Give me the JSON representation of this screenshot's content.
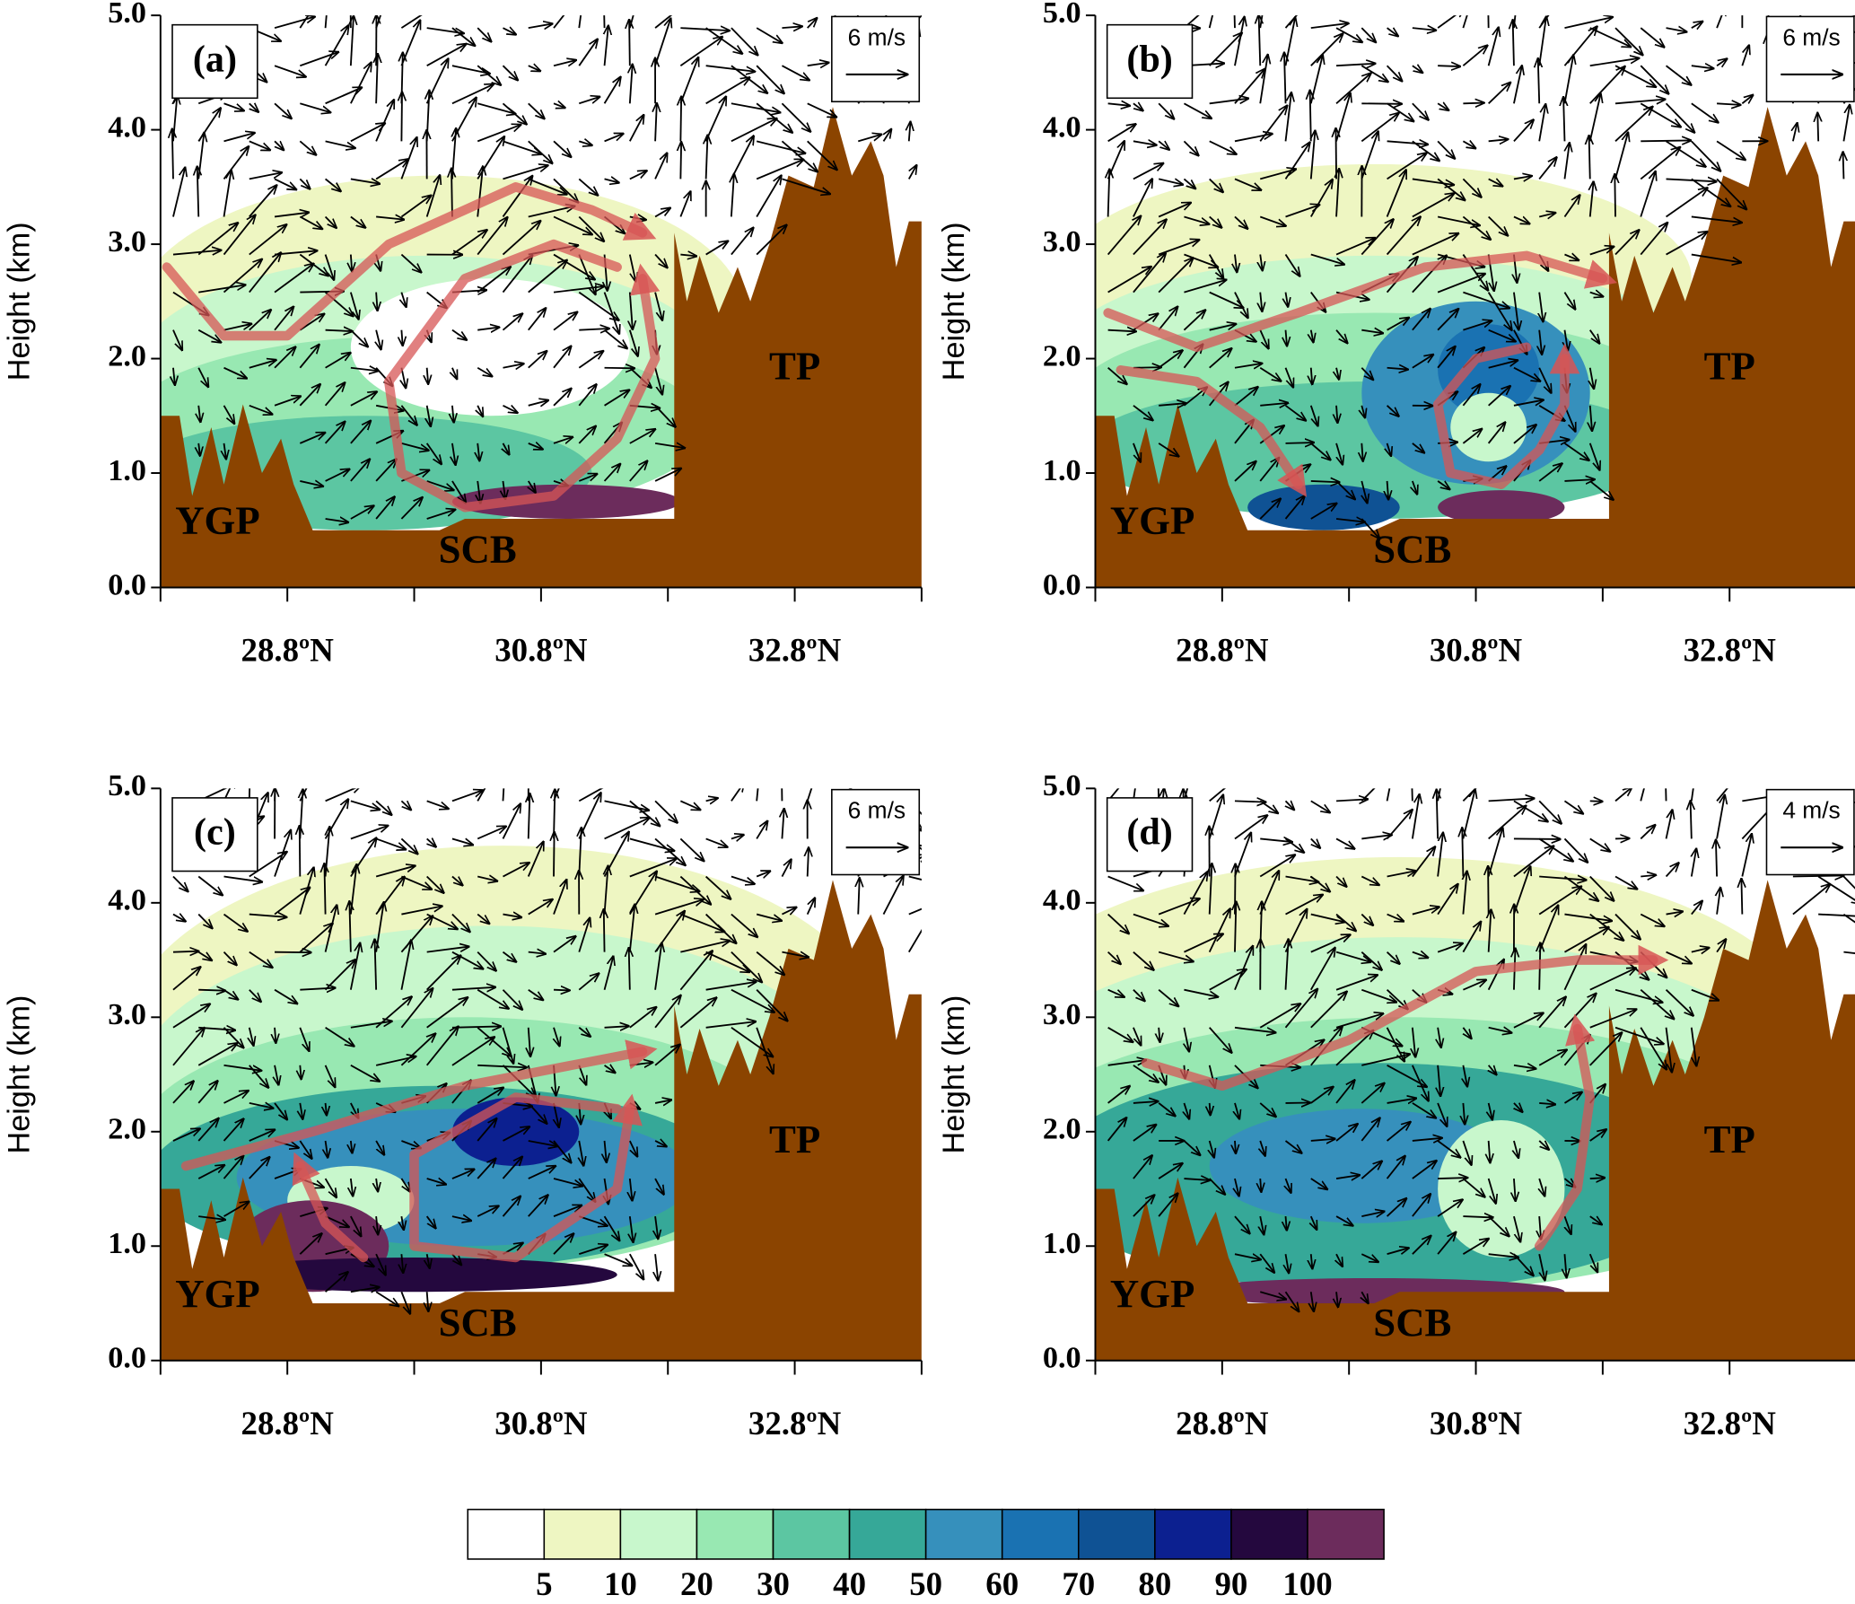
{
  "chart_data": [
    {
      "type": "contour",
      "panel_label": "(a)",
      "y_label": "Height (km)",
      "ylim": [
        0,
        5
      ],
      "yticks": [
        {
          "value": 0,
          "label": "0.0"
        },
        {
          "value": 1,
          "label": "1.0"
        },
        {
          "value": 2,
          "label": "2.0"
        },
        {
          "value": 3,
          "label": "3.0"
        },
        {
          "value": 4,
          "label": "4.0"
        },
        {
          "value": 5,
          "label": "5.0"
        }
      ],
      "xlim": [
        27.8,
        33.8
      ],
      "xticks": [
        {
          "value": 28.8,
          "label": "28.8ºN"
        },
        {
          "value": 30.8,
          "label": "30.8ºN"
        },
        {
          "value": 32.8,
          "label": "32.8ºN"
        }
      ],
      "xminor_ticks": [
        27.8,
        29.8,
        31.8,
        33.8
      ],
      "vector_reference": "6 m/s",
      "annotations": [
        "YGP",
        "SCB",
        "TP"
      ]
    },
    {
      "type": "contour",
      "panel_label": "(b)",
      "y_label": "Height (km)",
      "ylim": [
        0,
        5
      ],
      "yticks": [
        {
          "value": 0,
          "label": "0.0"
        },
        {
          "value": 1,
          "label": "1.0"
        },
        {
          "value": 2,
          "label": "2.0"
        },
        {
          "value": 3,
          "label": "3.0"
        },
        {
          "value": 4,
          "label": "4.0"
        },
        {
          "value": 5,
          "label": "5.0"
        }
      ],
      "xlim": [
        27.8,
        33.8
      ],
      "xticks": [
        {
          "value": 28.8,
          "label": "28.8ºN"
        },
        {
          "value": 30.8,
          "label": "30.8ºN"
        },
        {
          "value": 32.8,
          "label": "32.8ºN"
        }
      ],
      "xminor_ticks": [
        27.8,
        29.8,
        31.8,
        33.8
      ],
      "vector_reference": "6 m/s",
      "annotations": [
        "YGP",
        "SCB",
        "TP"
      ]
    },
    {
      "type": "contour",
      "panel_label": "(c)",
      "y_label": "Height (km)",
      "ylim": [
        0,
        5
      ],
      "yticks": [
        {
          "value": 0,
          "label": "0.0"
        },
        {
          "value": 1,
          "label": "1.0"
        },
        {
          "value": 2,
          "label": "2.0"
        },
        {
          "value": 3,
          "label": "3.0"
        },
        {
          "value": 4,
          "label": "4.0"
        },
        {
          "value": 5,
          "label": "5.0"
        }
      ],
      "xlim": [
        27.8,
        33.8
      ],
      "xticks": [
        {
          "value": 28.8,
          "label": "28.8ºN"
        },
        {
          "value": 30.8,
          "label": "30.8ºN"
        },
        {
          "value": 32.8,
          "label": "32.8ºN"
        }
      ],
      "xminor_ticks": [
        27.8,
        29.8,
        31.8,
        33.8
      ],
      "vector_reference": "6 m/s",
      "annotations": [
        "YGP",
        "SCB",
        "TP"
      ]
    },
    {
      "type": "contour",
      "panel_label": "(d)",
      "y_label": "Height (km)",
      "ylim": [
        0,
        5
      ],
      "yticks": [
        {
          "value": 0,
          "label": "0.0"
        },
        {
          "value": 1,
          "label": "1.0"
        },
        {
          "value": 2,
          "label": "2.0"
        },
        {
          "value": 3,
          "label": "3.0"
        },
        {
          "value": 4,
          "label": "4.0"
        },
        {
          "value": 5,
          "label": "5.0"
        }
      ],
      "xlim": [
        27.8,
        33.8
      ],
      "xticks": [
        {
          "value": 28.8,
          "label": "28.8ºN"
        },
        {
          "value": 30.8,
          "label": "30.8ºN"
        },
        {
          "value": 32.8,
          "label": "32.8ºN"
        }
      ],
      "xminor_ticks": [
        27.8,
        29.8,
        31.8,
        33.8
      ],
      "vector_reference": "4 m/s",
      "annotations": [
        "YGP",
        "SCB",
        "TP"
      ]
    }
  ],
  "colorbar": {
    "levels": [
      5,
      10,
      20,
      30,
      40,
      50,
      60,
      70,
      80,
      90,
      100
    ],
    "colors": [
      "#ffffff",
      "#eef6c2",
      "#c8f7cc",
      "#98e8b2",
      "#5cc6a2",
      "#36a898",
      "#3690bc",
      "#1a72b2",
      "#0f5294",
      "#0c2090",
      "#24083e",
      "#6c2c5c"
    ]
  }
}
